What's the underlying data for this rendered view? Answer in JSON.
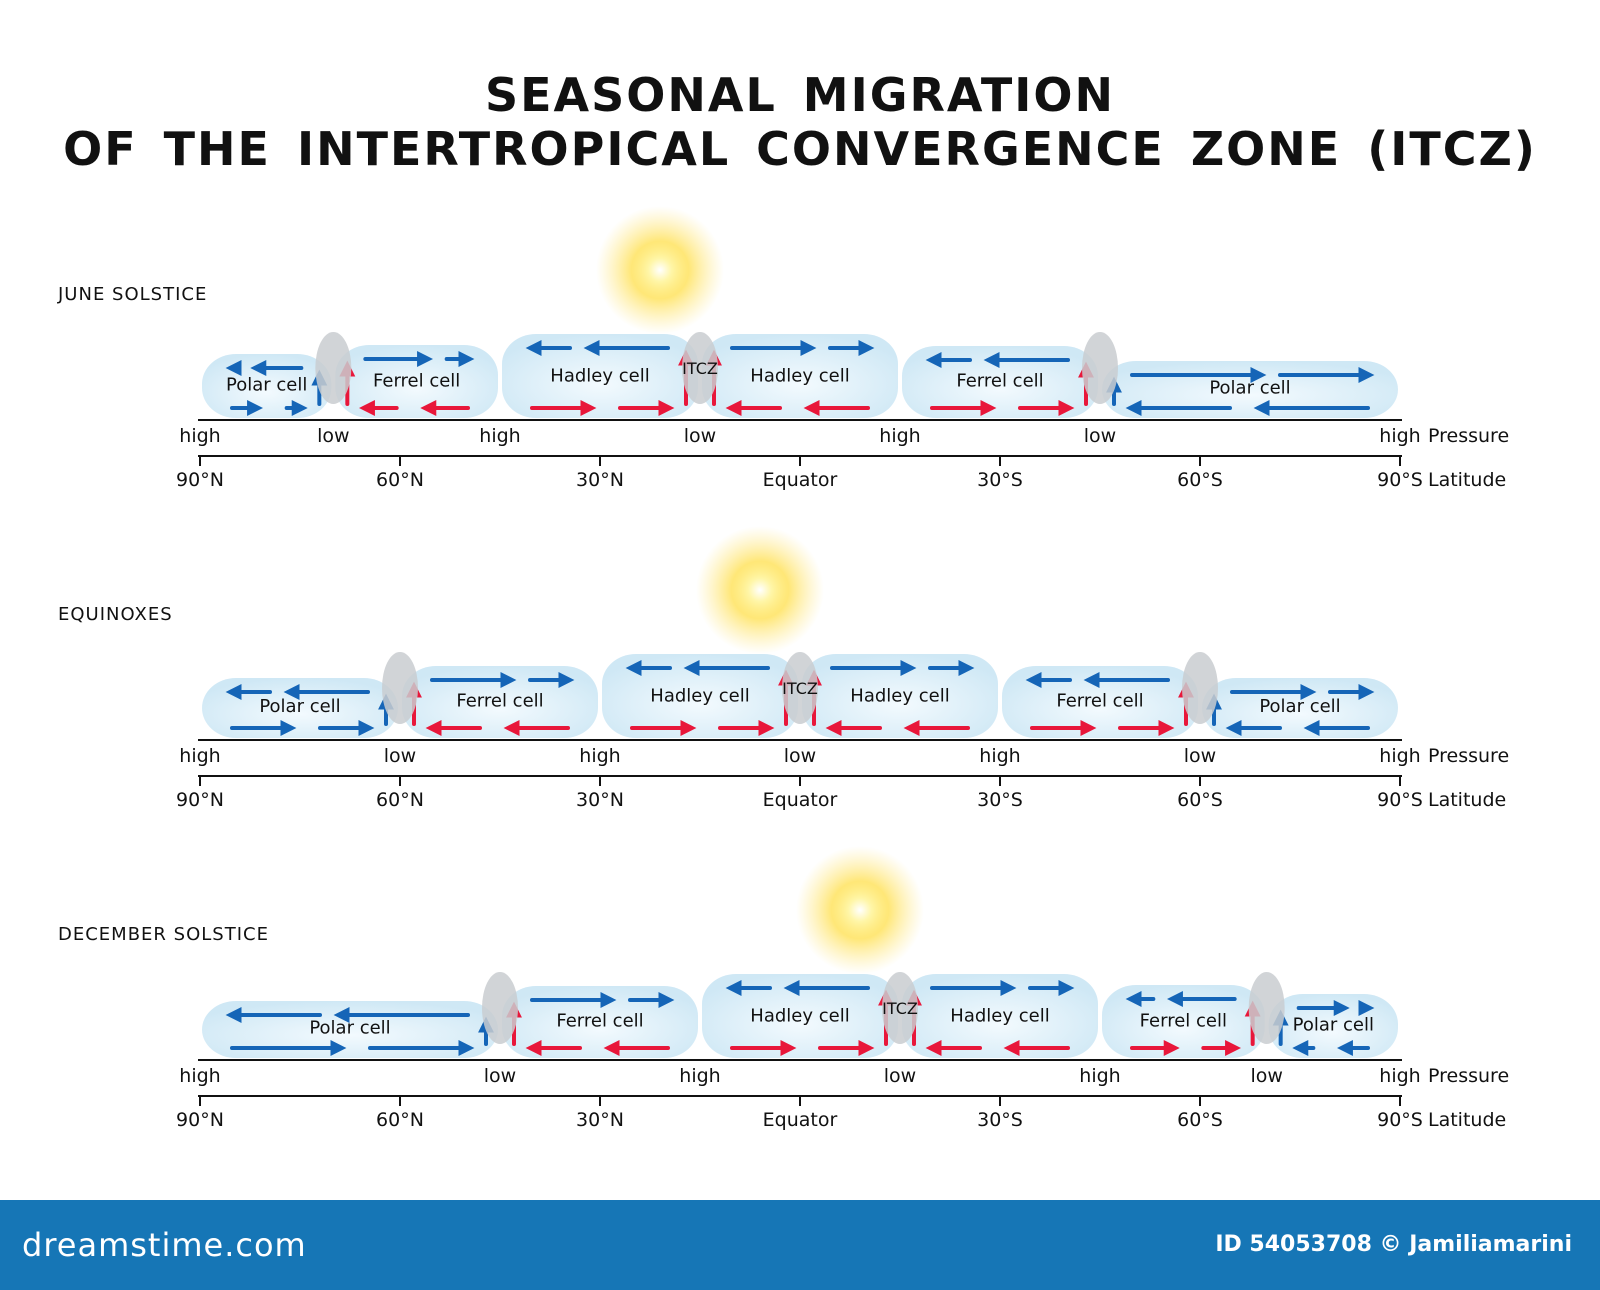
{
  "title": {
    "line1": "SEASONAL MIGRATION",
    "line2": "OF THE INTERTROPICAL CONVERGENCE ZONE (ITCZ)"
  },
  "row_titles": {
    "pressure": "Pressure",
    "latitude": "Latitude"
  },
  "latitude_ticks": [
    "90°N",
    "60°N",
    "30°N",
    "Equator",
    "30°S",
    "60°S",
    "90°S"
  ],
  "colors": {
    "upper_flow": "#1565b7",
    "surface_warm": "#e8173a",
    "cell_fill": "#d9eef8",
    "sun": "#ffd21a",
    "footer": "#1676b6"
  },
  "panels": [
    {
      "label": "JUNE SOLSTICE",
      "itcz_position": "between 30°N and Equator",
      "boundaries": [
        {
          "side": "outer",
          "pressure": "high",
          "lat": 90
        },
        {
          "side": "front",
          "pressure": "low",
          "lat": 70
        },
        {
          "side": "diverge",
          "pressure": "high",
          "lat": 45
        },
        {
          "side": "itcz",
          "pressure": "low",
          "lat": 15
        },
        {
          "side": "diverge",
          "pressure": "high",
          "lat": -15
        },
        {
          "side": "front",
          "pressure": "low",
          "lat": -45
        },
        {
          "side": "outer",
          "pressure": "high",
          "lat": -90
        }
      ],
      "cells": [
        {
          "name": "Polar cell",
          "from": 90,
          "to": 70
        },
        {
          "name": "Ferrel cell",
          "from": 70,
          "to": 45
        },
        {
          "name": "Hadley cell",
          "from": 45,
          "to": 15
        },
        {
          "name": "Hadley cell",
          "from": 15,
          "to": -15
        },
        {
          "name": "Ferrel cell",
          "from": -15,
          "to": -45
        },
        {
          "name": "Polar cell",
          "from": -45,
          "to": -90
        }
      ],
      "itcz_label": "ITCZ"
    },
    {
      "label": "EQUINOXES",
      "itcz_position": "Equator",
      "boundaries": [
        {
          "side": "outer",
          "pressure": "high",
          "lat": 90
        },
        {
          "side": "front",
          "pressure": "low",
          "lat": 60
        },
        {
          "side": "diverge",
          "pressure": "high",
          "lat": 30
        },
        {
          "side": "itcz",
          "pressure": "low",
          "lat": 0
        },
        {
          "side": "diverge",
          "pressure": "high",
          "lat": -30
        },
        {
          "side": "front",
          "pressure": "low",
          "lat": -60
        },
        {
          "side": "outer",
          "pressure": "high",
          "lat": -90
        }
      ],
      "cells": [
        {
          "name": "Polar cell",
          "from": 90,
          "to": 60
        },
        {
          "name": "Ferrel cell",
          "from": 60,
          "to": 30
        },
        {
          "name": "Hadley cell",
          "from": 30,
          "to": 0
        },
        {
          "name": "Hadley cell",
          "from": 0,
          "to": -30
        },
        {
          "name": "Ferrel cell",
          "from": -30,
          "to": -60
        },
        {
          "name": "Polar cell",
          "from": -60,
          "to": -90
        }
      ],
      "itcz_label": "ITCZ"
    },
    {
      "label": "DECEMBER SOLSTICE",
      "itcz_position": "between Equator and 30°S",
      "boundaries": [
        {
          "side": "outer",
          "pressure": "high",
          "lat": 90
        },
        {
          "side": "front",
          "pressure": "low",
          "lat": 45
        },
        {
          "side": "diverge",
          "pressure": "high",
          "lat": 15
        },
        {
          "side": "itcz",
          "pressure": "low",
          "lat": -15
        },
        {
          "side": "diverge",
          "pressure": "high",
          "lat": -45
        },
        {
          "side": "front",
          "pressure": "low",
          "lat": -70
        },
        {
          "side": "outer",
          "pressure": "high",
          "lat": -90
        }
      ],
      "cells": [
        {
          "name": "Polar cell",
          "from": 90,
          "to": 45
        },
        {
          "name": "Ferrel cell",
          "from": 45,
          "to": 15
        },
        {
          "name": "Hadley cell",
          "from": 15,
          "to": -15
        },
        {
          "name": "Hadley cell",
          "from": -15,
          "to": -45
        },
        {
          "name": "Ferrel cell",
          "from": -45,
          "to": -70
        },
        {
          "name": "Polar cell",
          "from": -70,
          "to": -90
        }
      ],
      "itcz_label": "ITCZ"
    }
  ],
  "footer": {
    "brand": "dreamstime.com",
    "credit": "ID 54053708 © Jamiliamarini"
  }
}
